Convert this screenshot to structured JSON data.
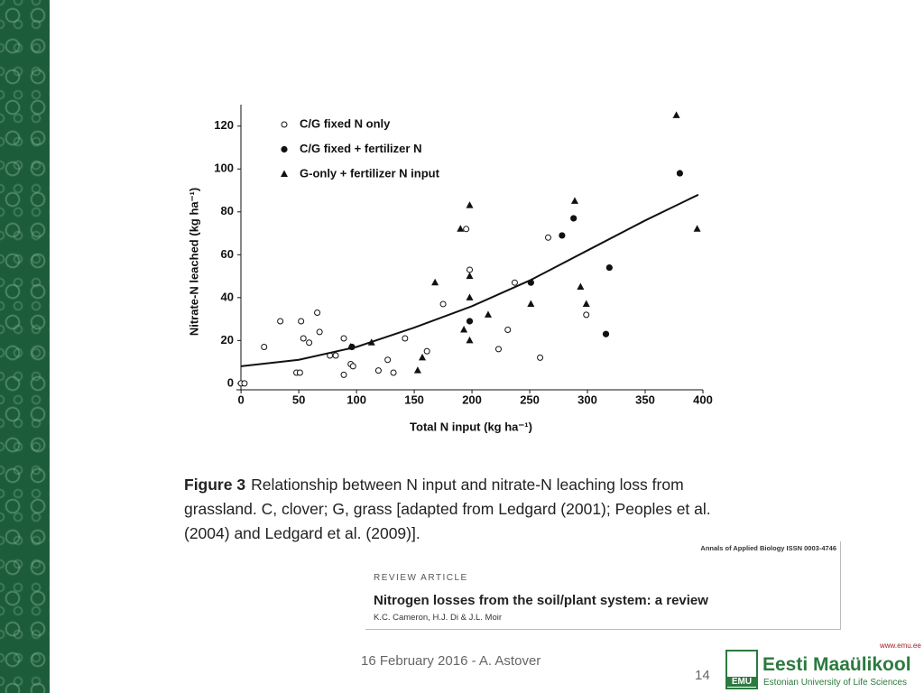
{
  "chart_data": {
    "type": "scatter",
    "xlabel": "Total N input (kg ha⁻¹)",
    "ylabel": "Nitrate-N leached (kg ha⁻¹)",
    "xlim": [
      -4,
      400
    ],
    "ylim": [
      -3,
      130
    ],
    "xticks": [
      0,
      50,
      100,
      150,
      200,
      250,
      300,
      350,
      400
    ],
    "yticks": [
      0,
      20,
      40,
      60,
      80,
      100,
      120
    ],
    "legend": "upper left",
    "series": [
      {
        "name": "C/G fixed N only",
        "marker": "open-circle",
        "color": "#111111",
        "x": [
          0,
          3,
          20,
          34,
          52,
          54,
          59,
          66,
          68,
          48,
          51,
          77,
          82,
          89,
          89,
          95,
          97,
          119,
          127,
          132,
          142,
          161,
          175,
          195,
          198,
          223,
          231,
          237,
          259,
          266,
          299
        ],
        "values": [
          0,
          0,
          17,
          29,
          29,
          21,
          19,
          33,
          24,
          5,
          5,
          13,
          13,
          21,
          4,
          9,
          8,
          6,
          11,
          5,
          21,
          15,
          37,
          72,
          53,
          16,
          25,
          47,
          12,
          68,
          32
        ]
      },
      {
        "name": "C/G fixed + fertilizer N",
        "marker": "filled-circle",
        "color": "#111111",
        "x": [
          96,
          198,
          251,
          278,
          288,
          319,
          316,
          380
        ],
        "values": [
          17,
          29,
          47,
          69,
          77,
          54,
          23,
          98
        ]
      },
      {
        "name": "G-only + fertilizer N input",
        "marker": "triangle",
        "color": "#111111",
        "x": [
          95,
          113,
          153,
          157,
          168,
          190,
          193,
          198,
          198,
          198,
          198,
          214,
          251,
          289,
          294,
          299,
          377,
          395
        ],
        "values": [
          17,
          19,
          6,
          12,
          47,
          72,
          25,
          83,
          50,
          40,
          20,
          32,
          37,
          85,
          45,
          37,
          125,
          72
        ]
      },
      {
        "marker": "line",
        "color": "#111111",
        "x": [
          0,
          50,
          100,
          150,
          200,
          250,
          300,
          350,
          396
        ],
        "values": [
          8,
          11,
          17,
          26,
          36,
          48,
          62,
          76,
          88
        ]
      }
    ],
    "caption_label": "Figure 3",
    "caption": "Relationship between N input and nitrate-N leaching loss from grassland. C, clover; G, grass [adapted from Ledgard (2001); Peoples et al. (2004) and Ledgard et al. (2009)]."
  },
  "article": {
    "journal": "Annals of Applied Biology ISSN 0003-4746",
    "kind": "REVIEW ARTICLE",
    "title": "Nitrogen losses from the soil/plant system: a review",
    "authors": "K.C. Cameron, H.J. Di & J.L. Moir"
  },
  "footer": {
    "date_author": "16 February 2016 - A. Astover",
    "page_number": "14",
    "url": "www.emu.ee",
    "logo_mark": "EMU",
    "university": "Eesti Maaülikool",
    "university_en": "Estonian University of Life Sciences"
  }
}
